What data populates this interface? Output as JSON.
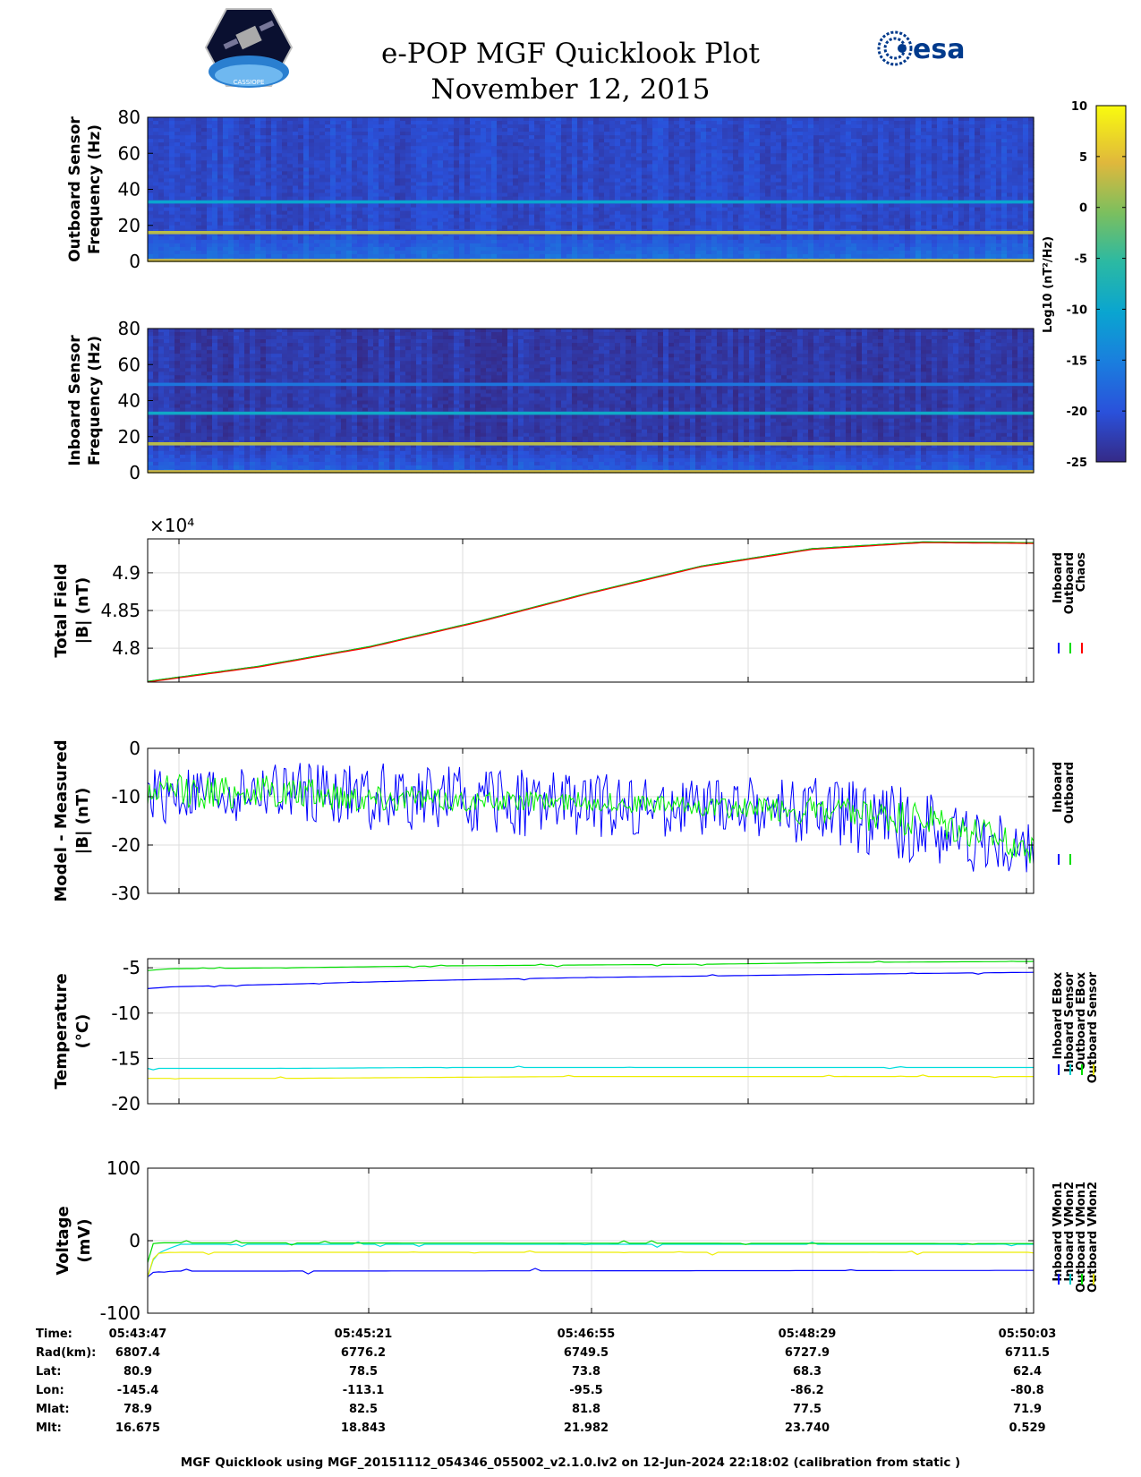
{
  "header": {
    "title": "e-POP MGF Quicklook Plot",
    "date": "November 12, 2015",
    "logo_left_text": "CASSIOPE",
    "logo_right_text": "esa"
  },
  "colorbar": {
    "label": "Log10 (nT²/Hz)",
    "ticks": [
      10,
      5,
      0,
      -5,
      -10,
      -15,
      -20,
      -25
    ],
    "range": [
      -25,
      10
    ]
  },
  "chart_data": [
    {
      "type": "heatmap",
      "name": "outboard-spectrogram",
      "ylabel_lines": [
        "Outboard Sensor",
        "Frequency (Hz)"
      ],
      "ylim": [
        0,
        80
      ],
      "yticks": [
        0,
        20,
        40,
        60,
        80
      ],
      "background_level": -21,
      "lines": [
        {
          "freq_hz": 16,
          "level": 3
        },
        {
          "freq_hz": 33,
          "level": -10
        },
        {
          "freq_hz": 0.5,
          "level": 4
        }
      ]
    },
    {
      "type": "heatmap",
      "name": "inboard-spectrogram",
      "ylabel_lines": [
        "Inboard Sensor",
        "Frequency (Hz)"
      ],
      "ylim": [
        0,
        80
      ],
      "yticks": [
        0,
        20,
        40,
        60,
        80
      ],
      "background_level": -23,
      "lines": [
        {
          "freq_hz": 16,
          "level": 3
        },
        {
          "freq_hz": 33,
          "level": -9
        },
        {
          "freq_hz": 49,
          "level": -16
        },
        {
          "freq_hz": 0.5,
          "level": 4
        }
      ]
    },
    {
      "type": "line",
      "name": "total-field",
      "ylabel_lines": [
        "Total Field",
        "|B| (nT)"
      ],
      "exponent_label": "×10⁴",
      "ylim": [
        4.755,
        4.945
      ],
      "yticks": [
        4.8,
        4.85,
        4.9
      ],
      "xlim": [
        0,
        376
      ],
      "legend": [
        "Inboard",
        "Outboard",
        "Chaos"
      ],
      "legend_colors": [
        "#0000ff",
        "#00dd00",
        "#ff0000"
      ],
      "series": [
        {
          "name": "Inboard",
          "color": "#0000ff",
          "x": [
            0,
            47,
            94,
            141,
            188,
            235,
            282,
            329,
            376
          ],
          "y": [
            4.756,
            4.776,
            4.802,
            4.836,
            4.874,
            4.909,
            4.932,
            4.941,
            4.94
          ]
        },
        {
          "name": "Outboard",
          "color": "#00dd00",
          "x": [
            0,
            47,
            94,
            141,
            188,
            235,
            282,
            329,
            376
          ],
          "y": [
            4.756,
            4.776,
            4.802,
            4.836,
            4.874,
            4.909,
            4.932,
            4.941,
            4.94
          ]
        },
        {
          "name": "Chaos",
          "color": "#ff0000",
          "x": [
            0,
            47,
            94,
            141,
            188,
            235,
            282,
            329,
            376
          ],
          "y": [
            4.755,
            4.775,
            4.801,
            4.835,
            4.873,
            4.908,
            4.931,
            4.94,
            4.939
          ]
        }
      ]
    },
    {
      "type": "line",
      "name": "model-minus-measured",
      "ylabel_lines": [
        "Model - Measured",
        "|B| (nT)"
      ],
      "ylim": [
        -30,
        0
      ],
      "yticks": [
        -30,
        -20,
        -10,
        0
      ],
      "xlim": [
        0,
        376
      ],
      "legend": [
        "Inboard",
        "Outboard"
      ],
      "legend_colors": [
        "#0000ff",
        "#00dd00"
      ],
      "series": [
        {
          "name": "Inboard",
          "color": "#0000ff",
          "x": [
            0,
            47,
            94,
            141,
            188,
            235,
            282,
            329,
            376
          ],
          "y": [
            -10,
            -9,
            -10,
            -11,
            -12,
            -12,
            -13,
            -16,
            -22
          ],
          "spread": [
            6,
            6,
            7,
            7,
            7,
            6,
            7,
            8,
            6
          ]
        },
        {
          "name": "Outboard",
          "color": "#00ee00",
          "x": [
            0,
            47,
            94,
            141,
            188,
            235,
            282,
            329,
            376
          ],
          "y": [
            -9,
            -9,
            -10,
            -11,
            -11,
            -12,
            -13,
            -15,
            -21
          ],
          "spread": [
            3.5,
            3.5,
            3,
            2,
            2,
            2,
            3,
            4,
            3
          ]
        }
      ]
    },
    {
      "type": "line",
      "name": "temperature",
      "ylabel_lines": [
        "Temperature",
        "(°C)"
      ],
      "ylim": [
        -20,
        -4
      ],
      "yticks": [
        -20,
        -15,
        -10,
        -5
      ],
      "xlim": [
        0,
        376
      ],
      "legend": [
        "Inboard EBox",
        "Inboard Sensor",
        "Outboard EBox",
        "Outboard Sensor"
      ],
      "legend_colors": [
        "#0000ff",
        "#00cccc",
        "#00dd00",
        "#dddd00"
      ],
      "series": [
        {
          "name": "Inboard EBox",
          "color": "#0000ff",
          "x": [
            0,
            10,
            60,
            120,
            180,
            240,
            300,
            376
          ],
          "y": [
            -7.3,
            -7.1,
            -6.8,
            -6.4,
            -6.1,
            -5.9,
            -5.7,
            -5.5
          ]
        },
        {
          "name": "Inboard Sensor",
          "color": "#00dddd",
          "x": [
            0,
            60,
            120,
            180,
            240,
            300,
            376
          ],
          "y": [
            -16.1,
            -16.1,
            -16.0,
            -16.0,
            -16.0,
            -16.0,
            -16.0
          ]
        },
        {
          "name": "Outboard EBox",
          "color": "#00dd00",
          "x": [
            0,
            10,
            60,
            120,
            180,
            240,
            300,
            376
          ],
          "y": [
            -5.3,
            -5.1,
            -5.0,
            -4.8,
            -4.7,
            -4.6,
            -4.4,
            -4.3
          ]
        },
        {
          "name": "Outboard Sensor",
          "color": "#eeee00",
          "x": [
            0,
            60,
            120,
            180,
            240,
            300,
            376
          ],
          "y": [
            -17.2,
            -17.2,
            -17.1,
            -17.0,
            -17.0,
            -17.0,
            -17.0
          ]
        }
      ]
    },
    {
      "type": "line",
      "name": "voltage",
      "ylabel_lines": [
        "Voltage",
        "(mV)"
      ],
      "ylim": [
        -100,
        100
      ],
      "yticks": [
        -100,
        0,
        100
      ],
      "xlim": [
        0,
        376
      ],
      "legend": [
        "Inboard VMon1",
        "Inboard VMon2",
        "Outboard VMon1",
        "Outboard VMon2"
      ],
      "legend_colors": [
        "#0000ff",
        "#00cccc",
        "#00dd00",
        "#dddd00"
      ],
      "series": [
        {
          "name": "Inboard VMon1",
          "color": "#0000ff",
          "x": [
            0,
            3,
            6,
            10,
            30,
            376
          ],
          "y": [
            -50,
            -42,
            -44,
            -42,
            -42,
            -41
          ]
        },
        {
          "name": "Inboard VMon2",
          "color": "#00dddd",
          "x": [
            0,
            3,
            8,
            14,
            20,
            376
          ],
          "y": [
            -50,
            -20,
            -12,
            -5,
            -5,
            -5
          ]
        },
        {
          "name": "Outboard VMon1",
          "color": "#00dd00",
          "x": [
            0,
            2,
            5,
            376
          ],
          "y": [
            -30,
            -5,
            -3,
            -4
          ]
        },
        {
          "name": "Outboard VMon2",
          "color": "#eeee00",
          "x": [
            0,
            3,
            10,
            20,
            376
          ],
          "y": [
            -50,
            -18,
            -16,
            -16,
            -16
          ]
        }
      ]
    }
  ],
  "ephemeris": {
    "row_labels": [
      "Time:",
      "Rad(km):",
      "Lat:",
      "Lon:",
      "Mlat:",
      "Mlt:"
    ],
    "columns": [
      [
        "05:43:47",
        "6807.4",
        "80.9",
        "-145.4",
        "78.9",
        "16.675"
      ],
      [
        "05:45:21",
        "6776.2",
        "78.5",
        "-113.1",
        "82.5",
        "18.843"
      ],
      [
        "05:46:55",
        "6749.5",
        "73.8",
        "-95.5",
        "81.8",
        "21.982"
      ],
      [
        "05:48:29",
        "6727.9",
        "68.3",
        "-86.2",
        "77.5",
        "23.740"
      ],
      [
        "05:50:03",
        "6711.5",
        "62.4",
        "-80.8",
        "71.9",
        "0.529"
      ]
    ]
  },
  "footer": "MGF Quicklook using MGF_20151112_054346_055002_v2.1.0.lv2 on 12-Jun-2024 22:18:02 (calibration from static )"
}
